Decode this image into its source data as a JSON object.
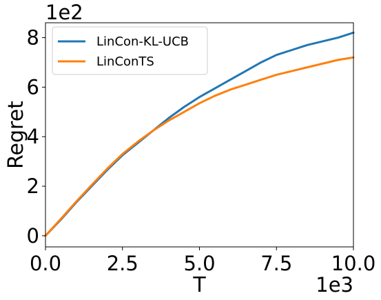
{
  "chart_data": {
    "type": "line",
    "title": "",
    "xlabel": "T",
    "ylabel": "Regret",
    "x_offset_text": "1e3",
    "y_offset_text": "1e2",
    "xlim": [
      0,
      10
    ],
    "ylim": [
      -0.45,
      8.6
    ],
    "xticks": [
      0,
      2.5,
      5,
      7.5,
      10
    ],
    "xtick_labels": [
      "0.0",
      "2.5",
      "5.0",
      "7.5",
      "10.0"
    ],
    "yticks": [
      0,
      2,
      4,
      6,
      8
    ],
    "ytick_labels": [
      "0",
      "2",
      "4",
      "6",
      "8"
    ],
    "grid": false,
    "legend_position": "top-left",
    "series": [
      {
        "name": "LinCon-KL-UCB",
        "color": "#1f77b4",
        "x": [
          0,
          0.5,
          1.0,
          1.5,
          2.0,
          2.5,
          3.0,
          3.5,
          4.0,
          4.5,
          5.0,
          5.5,
          6.0,
          6.5,
          7.0,
          7.5,
          8.0,
          8.5,
          9.0,
          9.5,
          10.0
        ],
        "y": [
          0.0,
          0.65,
          1.35,
          2.0,
          2.65,
          3.25,
          3.75,
          4.25,
          4.75,
          5.2,
          5.6,
          5.95,
          6.3,
          6.65,
          7.0,
          7.3,
          7.5,
          7.7,
          7.85,
          8.0,
          8.2
        ]
      },
      {
        "name": "LinConTS",
        "color": "#ff7f0e",
        "x": [
          0,
          0.5,
          1.0,
          1.5,
          2.0,
          2.5,
          3.0,
          3.5,
          4.0,
          4.5,
          5.0,
          5.5,
          6.0,
          6.5,
          7.0,
          7.5,
          8.0,
          8.5,
          9.0,
          9.5,
          10.0
        ],
        "y": [
          0.0,
          0.68,
          1.38,
          2.05,
          2.7,
          3.3,
          3.8,
          4.25,
          4.65,
          5.0,
          5.35,
          5.65,
          5.9,
          6.1,
          6.3,
          6.5,
          6.65,
          6.8,
          6.95,
          7.1,
          7.2
        ]
      }
    ]
  }
}
